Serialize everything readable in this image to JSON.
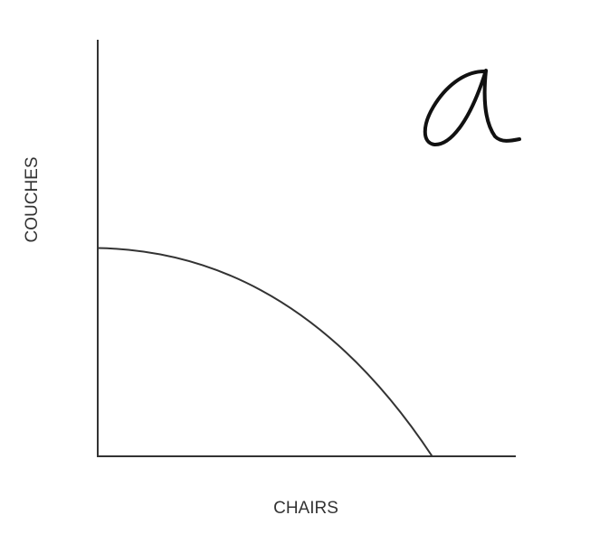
{
  "chart_data": {
    "type": "line",
    "title": "",
    "xlabel": "CHAIRS",
    "ylabel": "COUCHES",
    "grid": false,
    "legend": "none",
    "xlim": [
      0,
      1
    ],
    "ylim": [
      0,
      1
    ],
    "series": [
      {
        "values": [
          {
            "x": 0.0,
            "y": 0.5
          },
          {
            "x": 0.2,
            "y": 0.48
          },
          {
            "x": 0.4,
            "y": 0.42
          },
          {
            "x": 0.6,
            "y": 0.32
          },
          {
            "x": 0.8,
            "y": 0.15
          },
          {
            "x": 0.8,
            "y": 0.0
          }
        ]
      }
    ],
    "annotation": "a"
  },
  "colors": {
    "axis": "#333333",
    "curve": "#333333",
    "handwriting": "#111111"
  }
}
